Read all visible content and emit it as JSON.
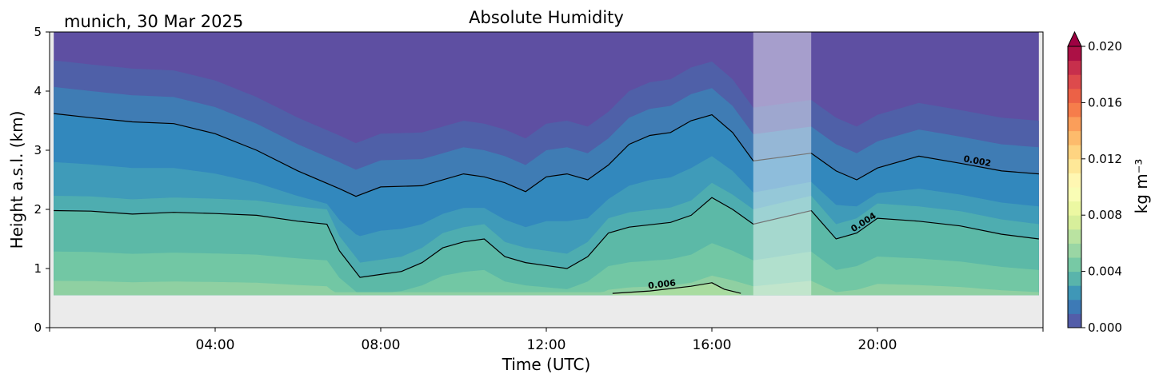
{
  "chart_data": {
    "type": "contour",
    "title": "Absolute Humidity",
    "subtitle": "munich, 30 Mar 2025",
    "xlabel": "Time (UTC)",
    "ylabel": "Height a.s.l. (km)",
    "x_ticks": [
      "04:00",
      "08:00",
      "12:00",
      "16:00",
      "20:00"
    ],
    "x_tick_hours": [
      4,
      8,
      12,
      16,
      20
    ],
    "xlim_hours": [
      0,
      24
    ],
    "y_ticks": [
      "0",
      "1",
      "2",
      "3",
      "4",
      "5"
    ],
    "ylim_km": [
      0,
      5
    ],
    "data_bottom_km": 0.55,
    "data_start_hour": 0.1,
    "data_end_hour": 23.9,
    "missing_data_band_hours": [
      17.0,
      18.4
    ],
    "colorbar": {
      "label": "kg m⁻³",
      "ticks": [
        "0.000",
        "0.004",
        "0.008",
        "0.012",
        "0.016",
        "0.020"
      ],
      "range": [
        0,
        0.02
      ],
      "colormap": "Spectral_r",
      "extend": "max",
      "colors": [
        "#5e4fa2",
        "#3288bd",
        "#66c2a5",
        "#abdda4",
        "#e6f598",
        "#ffffbf",
        "#fee08b",
        "#fdae61",
        "#f46d43",
        "#d53e4f",
        "#9e0142"
      ]
    },
    "contour_lines": [
      {
        "level_label": "0.002",
        "label_hour": 22.4,
        "height_km": [
          [
            0.1,
            3.62
          ],
          [
            1,
            3.55
          ],
          [
            2,
            3.48
          ],
          [
            3,
            3.45
          ],
          [
            4,
            3.28
          ],
          [
            5,
            3.0
          ],
          [
            6,
            2.65
          ],
          [
            7,
            2.35
          ],
          [
            7.4,
            2.22
          ],
          [
            8,
            2.38
          ],
          [
            9,
            2.4
          ],
          [
            10,
            2.6
          ],
          [
            10.5,
            2.55
          ],
          [
            11,
            2.45
          ],
          [
            11.5,
            2.3
          ],
          [
            12,
            2.55
          ],
          [
            12.5,
            2.6
          ],
          [
            13,
            2.5
          ],
          [
            13.5,
            2.75
          ],
          [
            14,
            3.1
          ],
          [
            14.5,
            3.25
          ],
          [
            15,
            3.3
          ],
          [
            15.5,
            3.5
          ],
          [
            16,
            3.6
          ],
          [
            16.5,
            3.3
          ],
          [
            17,
            2.82
          ],
          [
            18.4,
            2.95
          ],
          [
            19,
            2.65
          ],
          [
            19.5,
            2.5
          ],
          [
            20,
            2.7
          ],
          [
            21,
            2.9
          ],
          [
            22,
            2.78
          ],
          [
            23,
            2.65
          ],
          [
            23.9,
            2.6
          ]
        ]
      },
      {
        "level_label": "0.004",
        "label_hour": 19.7,
        "height_km": [
          [
            0.1,
            1.98
          ],
          [
            1,
            1.97
          ],
          [
            2,
            1.92
          ],
          [
            3,
            1.95
          ],
          [
            4,
            1.93
          ],
          [
            5,
            1.9
          ],
          [
            6,
            1.8
          ],
          [
            6.7,
            1.75
          ],
          [
            7,
            1.3
          ],
          [
            7.5,
            0.85
          ],
          [
            8,
            0.9
          ],
          [
            8.5,
            0.95
          ],
          [
            9,
            1.1
          ],
          [
            9.5,
            1.35
          ],
          [
            10,
            1.45
          ],
          [
            10.5,
            1.5
          ],
          [
            11,
            1.2
          ],
          [
            11.5,
            1.1
          ],
          [
            12,
            1.05
          ],
          [
            12.5,
            1.0
          ],
          [
            13,
            1.2
          ],
          [
            13.5,
            1.6
          ],
          [
            14,
            1.7
          ],
          [
            15,
            1.78
          ],
          [
            15.5,
            1.9
          ],
          [
            16,
            2.2
          ],
          [
            16.5,
            2.0
          ],
          [
            17,
            1.75
          ],
          [
            18.4,
            1.98
          ],
          [
            19,
            1.5
          ],
          [
            19.5,
            1.6
          ],
          [
            20,
            1.85
          ],
          [
            21,
            1.8
          ],
          [
            22,
            1.72
          ],
          [
            23,
            1.58
          ],
          [
            23.9,
            1.5
          ]
        ]
      },
      {
        "level_label": "0.006",
        "label_hour": 14.8,
        "height_km": [
          [
            13.6,
            0.58
          ],
          [
            14.5,
            0.62
          ],
          [
            15.5,
            0.7
          ],
          [
            16,
            0.76
          ],
          [
            16.3,
            0.65
          ],
          [
            16.7,
            0.58
          ]
        ]
      }
    ]
  }
}
